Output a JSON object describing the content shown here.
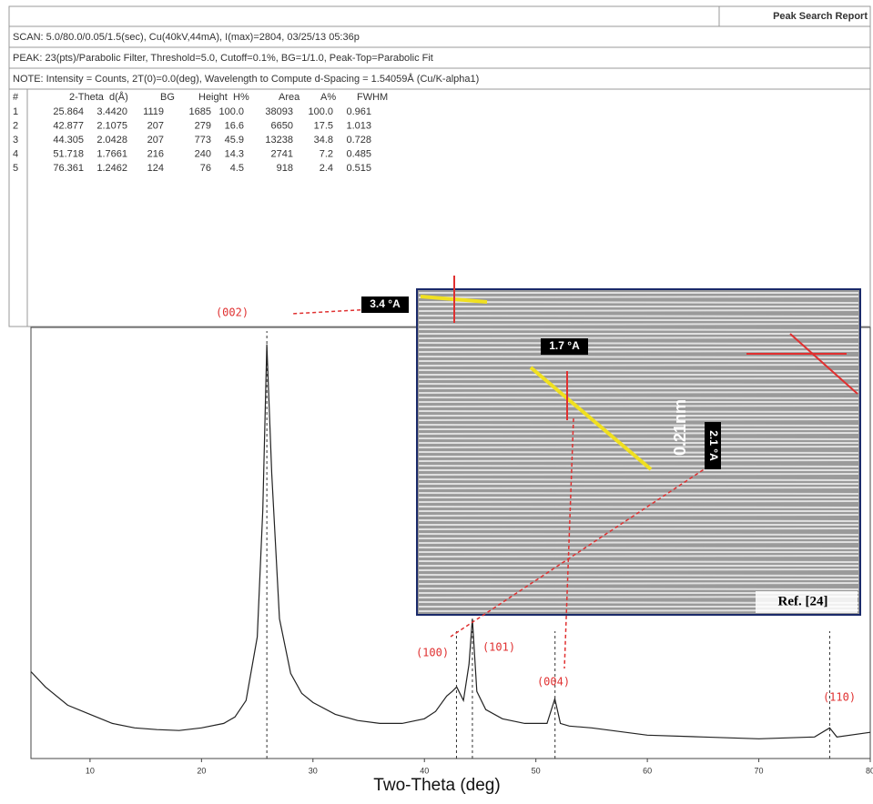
{
  "report": {
    "title": "Peak Search Report",
    "scan": "SCAN: 5.0/80.0/0.05/1.5(sec), Cu(40kV,44mA), I(max)=2804, 03/25/13 05:36p",
    "peak": "PEAK: 23(pts)/Parabolic Filter, Threshold=5.0, Cutoff=0.1%, BG=1/1.0, Peak-Top=Parabolic Fit",
    "note": "NOTE: Intensity = Counts, 2T(0)=0.0(deg), Wavelength to Compute d-Spacing = 1.54059Å (Cu/K-alpha1)"
  },
  "table": {
    "header": [
      "#",
      "2-Theta",
      "d(Å)",
      "BG",
      "Height",
      "H%",
      "Area",
      "A%",
      "FWHM"
    ],
    "rows": [
      [
        "1",
        "25.864",
        "3.4420",
        "1119",
        "1685",
        "100.0",
        "38093",
        "100.0",
        "0.961"
      ],
      [
        "2",
        "42.877",
        "2.1075",
        "207",
        "279",
        "16.6",
        "6650",
        "17.5",
        "1.013"
      ],
      [
        "3",
        "44.305",
        "2.0428",
        "207",
        "773",
        "45.9",
        "13238",
        "34.8",
        "0.728"
      ],
      [
        "4",
        "51.718",
        "1.7661",
        "216",
        "240",
        "14.3",
        "2741",
        "7.2",
        "0.485"
      ],
      [
        "5",
        "76.361",
        "1.2462",
        "124",
        "76",
        "4.5",
        "918",
        "2.4",
        "0.515"
      ]
    ]
  },
  "chart_data": {
    "type": "line",
    "xlabel": "Two-Theta (deg)",
    "color": "#222222",
    "x": [
      4.7,
      6,
      8,
      10,
      12,
      14,
      16,
      18,
      20,
      22,
      23,
      24,
      25,
      25.5,
      25.86,
      26.3,
      27,
      28,
      29,
      30,
      32,
      34,
      36,
      38,
      40,
      41,
      42,
      42.5,
      42.9,
      43.5,
      44.0,
      44.3,
      44.7,
      45.5,
      47,
      49,
      51,
      51.7,
      52.2,
      53,
      55,
      60,
      65,
      70,
      75,
      76.36,
      77,
      80
    ],
    "values": [
      1331,
      1262,
      1180,
      1139,
      1098,
      1078,
      1070,
      1066,
      1078,
      1098,
      1127,
      1201,
      1487,
      2060,
      2804,
      2223,
      1569,
      1323,
      1233,
      1192,
      1139,
      1111,
      1098,
      1098,
      1119,
      1152,
      1221,
      1242,
      1262,
      1201,
      1364,
      1569,
      1242,
      1160,
      1119,
      1098,
      1098,
      1209,
      1098,
      1086,
      1078,
      1045,
      1037,
      1029,
      1037,
      1078,
      1037,
      1058
    ],
    "xlim": [
      4.7,
      80
    ],
    "ylim": [
      940,
      2880
    ],
    "xticks": [
      10,
      20,
      30,
      40,
      50,
      60,
      70,
      80
    ],
    "peak_labels": [
      "(002)",
      "(100)",
      "(101)",
      "(004)",
      "(110)"
    ],
    "inset": {
      "labels": [
        "3.4 °A",
        "1.7 °A",
        "2.1 °A",
        "0.21nm"
      ],
      "reference": "Ref. [24]"
    }
  }
}
